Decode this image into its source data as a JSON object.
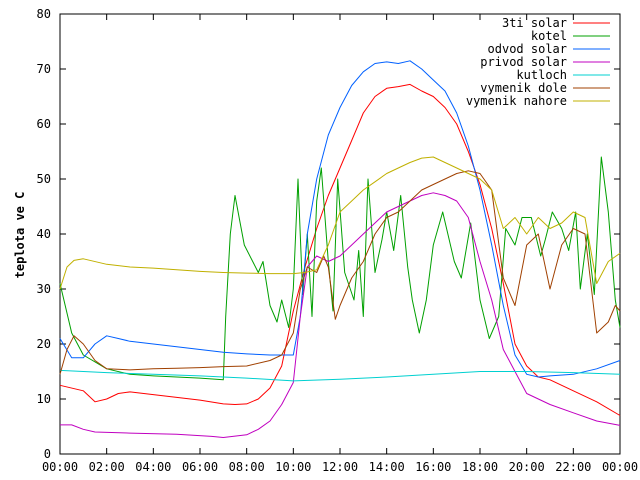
{
  "chart_data": {
    "type": "line",
    "title": "",
    "xlabel": "",
    "ylabel": "teplota ve C",
    "xlim": [
      0,
      24
    ],
    "ylim": [
      0,
      80
    ],
    "grid": false,
    "legend": "top-right",
    "x_ticks": [
      "00:00",
      "02:00",
      "04:00",
      "06:00",
      "08:00",
      "10:00",
      "12:00",
      "14:00",
      "16:00",
      "18:00",
      "20:00",
      "22:00",
      "00:00"
    ],
    "y_ticks": [
      0,
      10,
      20,
      30,
      40,
      50,
      60,
      70,
      80
    ],
    "series": [
      {
        "name": "3ti solar",
        "color": "#ff0000",
        "points": [
          [
            0,
            12.5
          ],
          [
            1,
            11.5
          ],
          [
            1.5,
            9.5
          ],
          [
            2,
            10
          ],
          [
            2.5,
            11
          ],
          [
            3,
            11.3
          ],
          [
            4,
            10.8
          ],
          [
            5,
            10.3
          ],
          [
            6,
            9.8
          ],
          [
            7,
            9.1
          ],
          [
            7.5,
            9
          ],
          [
            8,
            9.1
          ],
          [
            8.5,
            10
          ],
          [
            9,
            12
          ],
          [
            9.5,
            16
          ],
          [
            10,
            26
          ],
          [
            10.5,
            34
          ],
          [
            11,
            41
          ],
          [
            11.5,
            47
          ],
          [
            12,
            52
          ],
          [
            12.5,
            57
          ],
          [
            13,
            62
          ],
          [
            13.5,
            65
          ],
          [
            14,
            66.5
          ],
          [
            14.5,
            66.8
          ],
          [
            15,
            67.2
          ],
          [
            15.5,
            66
          ],
          [
            16,
            65
          ],
          [
            16.5,
            63
          ],
          [
            17,
            60
          ],
          [
            17.5,
            55
          ],
          [
            18,
            49
          ],
          [
            18.5,
            41
          ],
          [
            19,
            31
          ],
          [
            19.5,
            20
          ],
          [
            20,
            16
          ],
          [
            20.5,
            14
          ],
          [
            21,
            13.5
          ],
          [
            22,
            11.5
          ],
          [
            23,
            9.5
          ],
          [
            24,
            7
          ]
        ]
      },
      {
        "name": "kotel",
        "color": "#00a000",
        "points": [
          [
            0,
            31
          ],
          [
            0.5,
            22
          ],
          [
            1,
            18
          ],
          [
            2,
            15.5
          ],
          [
            3,
            14.5
          ],
          [
            4,
            14.2
          ],
          [
            5,
            14
          ],
          [
            6,
            13.8
          ],
          [
            7,
            13.5
          ],
          [
            7.1,
            25
          ],
          [
            7.3,
            40
          ],
          [
            7.5,
            47
          ],
          [
            7.9,
            38
          ],
          [
            8.5,
            33
          ],
          [
            8.7,
            35
          ],
          [
            9,
            27
          ],
          [
            9.3,
            24
          ],
          [
            9.5,
            28
          ],
          [
            9.8,
            23
          ],
          [
            10,
            30
          ],
          [
            10.2,
            50
          ],
          [
            10.4,
            29
          ],
          [
            10.6,
            40
          ],
          [
            10.8,
            25
          ],
          [
            11,
            46
          ],
          [
            11.2,
            52
          ],
          [
            11.5,
            35
          ],
          [
            11.7,
            26
          ],
          [
            11.9,
            50
          ],
          [
            12.2,
            33
          ],
          [
            12.6,
            28
          ],
          [
            12.8,
            37
          ],
          [
            13,
            25
          ],
          [
            13.2,
            50
          ],
          [
            13.5,
            33
          ],
          [
            13.8,
            39
          ],
          [
            14,
            44
          ],
          [
            14.3,
            37
          ],
          [
            14.6,
            47
          ],
          [
            14.9,
            34
          ],
          [
            15.1,
            28
          ],
          [
            15.4,
            22
          ],
          [
            15.7,
            28
          ],
          [
            16,
            38
          ],
          [
            16.4,
            44
          ],
          [
            16.9,
            35
          ],
          [
            17.2,
            32
          ],
          [
            17.6,
            42
          ],
          [
            18,
            28
          ],
          [
            18.4,
            21
          ],
          [
            18.8,
            25
          ],
          [
            19.1,
            41
          ],
          [
            19.5,
            38
          ],
          [
            19.8,
            43
          ],
          [
            20.2,
            43
          ],
          [
            20.6,
            36
          ],
          [
            20.8,
            39
          ],
          [
            21.1,
            44
          ],
          [
            21.5,
            41
          ],
          [
            21.8,
            37
          ],
          [
            22.1,
            44
          ],
          [
            22.3,
            30
          ],
          [
            22.6,
            40
          ],
          [
            22.9,
            29
          ],
          [
            23.2,
            54
          ],
          [
            23.5,
            44
          ],
          [
            23.8,
            28
          ],
          [
            24,
            23
          ]
        ]
      },
      {
        "name": "odvod solar",
        "color": "#0060ff",
        "points": [
          [
            0,
            21
          ],
          [
            0.5,
            17.5
          ],
          [
            1,
            17.5
          ],
          [
            1.5,
            20
          ],
          [
            2,
            21.5
          ],
          [
            2.5,
            21
          ],
          [
            3,
            20.5
          ],
          [
            4,
            20
          ],
          [
            5,
            19.5
          ],
          [
            6,
            19
          ],
          [
            7,
            18.5
          ],
          [
            8,
            18.2
          ],
          [
            9,
            18
          ],
          [
            10,
            18
          ],
          [
            10.3,
            25
          ],
          [
            10.6,
            40
          ],
          [
            11,
            50
          ],
          [
            11.5,
            58
          ],
          [
            12,
            63
          ],
          [
            12.5,
            67
          ],
          [
            13,
            69.5
          ],
          [
            13.5,
            71
          ],
          [
            14,
            71.3
          ],
          [
            14.5,
            71
          ],
          [
            15,
            71.5
          ],
          [
            15.5,
            70
          ],
          [
            16,
            68
          ],
          [
            16.5,
            66
          ],
          [
            17,
            62
          ],
          [
            17.5,
            56
          ],
          [
            18,
            48
          ],
          [
            18.5,
            38
          ],
          [
            19,
            27
          ],
          [
            19.5,
            18
          ],
          [
            20,
            14.5
          ],
          [
            20.5,
            14
          ],
          [
            21,
            14.2
          ],
          [
            22,
            14.5
          ],
          [
            23,
            15.5
          ],
          [
            24,
            17
          ]
        ]
      },
      {
        "name": "privod solar",
        "color": "#c000c0",
        "points": [
          [
            0,
            5.3
          ],
          [
            0.5,
            5.3
          ],
          [
            1,
            4.5
          ],
          [
            1.5,
            4
          ],
          [
            3,
            3.8
          ],
          [
            5,
            3.6
          ],
          [
            6.5,
            3.2
          ],
          [
            7,
            3
          ],
          [
            8,
            3.5
          ],
          [
            8.5,
            4.5
          ],
          [
            9,
            6
          ],
          [
            9.5,
            9
          ],
          [
            10,
            13
          ],
          [
            10.3,
            25
          ],
          [
            10.6,
            34
          ],
          [
            11,
            36
          ],
          [
            11.5,
            35
          ],
          [
            12,
            36
          ],
          [
            12.5,
            38
          ],
          [
            13,
            40
          ],
          [
            13.5,
            42
          ],
          [
            14,
            44
          ],
          [
            14.5,
            45
          ],
          [
            15,
            46
          ],
          [
            15.5,
            47
          ],
          [
            16,
            47.5
          ],
          [
            16.5,
            47
          ],
          [
            17,
            46
          ],
          [
            17.5,
            43
          ],
          [
            18,
            35
          ],
          [
            18.5,
            28
          ],
          [
            19,
            19
          ],
          [
            19.5,
            15
          ],
          [
            20,
            11
          ],
          [
            21,
            9
          ],
          [
            22,
            7.5
          ],
          [
            23,
            6
          ],
          [
            24,
            5.2
          ]
        ]
      },
      {
        "name": "kutloch",
        "color": "#00d0d0",
        "points": [
          [
            0,
            15.2
          ],
          [
            2,
            14.8
          ],
          [
            4,
            14.5
          ],
          [
            6,
            14.2
          ],
          [
            8,
            13.8
          ],
          [
            10,
            13.3
          ],
          [
            12,
            13.6
          ],
          [
            14,
            14
          ],
          [
            16,
            14.5
          ],
          [
            18,
            15
          ],
          [
            20,
            15
          ],
          [
            22,
            14.8
          ],
          [
            24,
            14.5
          ]
        ]
      },
      {
        "name": "vymenik dole",
        "color": "#a04000",
        "points": [
          [
            0,
            14.5
          ],
          [
            0.3,
            19
          ],
          [
            0.6,
            21.5
          ],
          [
            1,
            20
          ],
          [
            1.5,
            17
          ],
          [
            2,
            15.5
          ],
          [
            3,
            15.3
          ],
          [
            4,
            15.5
          ],
          [
            5,
            15.6
          ],
          [
            6,
            15.7
          ],
          [
            7,
            15.9
          ],
          [
            8,
            16
          ],
          [
            9,
            17
          ],
          [
            9.5,
            18
          ],
          [
            10,
            22
          ],
          [
            10.3,
            30
          ],
          [
            10.6,
            34
          ],
          [
            11,
            33
          ],
          [
            11.3,
            36
          ],
          [
            11.5,
            34
          ],
          [
            11.8,
            24.5
          ],
          [
            12,
            27
          ],
          [
            12.5,
            32
          ],
          [
            13,
            35
          ],
          [
            13.5,
            40
          ],
          [
            14,
            43
          ],
          [
            14.5,
            44
          ],
          [
            15,
            46
          ],
          [
            15.5,
            48
          ],
          [
            16,
            49
          ],
          [
            16.5,
            50
          ],
          [
            17,
            51
          ],
          [
            17.5,
            51.5
          ],
          [
            18,
            51
          ],
          [
            18.5,
            48
          ],
          [
            19,
            32
          ],
          [
            19.5,
            27
          ],
          [
            20,
            38
          ],
          [
            20.5,
            40
          ],
          [
            21,
            30
          ],
          [
            21.5,
            38
          ],
          [
            22,
            41
          ],
          [
            22.5,
            40
          ],
          [
            23,
            22
          ],
          [
            23.5,
            24
          ],
          [
            23.8,
            27
          ],
          [
            24,
            26
          ]
        ]
      },
      {
        "name": "vymenik nahore",
        "color": "#c0b000",
        "points": [
          [
            0,
            30
          ],
          [
            0.3,
            34
          ],
          [
            0.6,
            35.2
          ],
          [
            1,
            35.5
          ],
          [
            2,
            34.5
          ],
          [
            3,
            34
          ],
          [
            4,
            33.8
          ],
          [
            5,
            33.5
          ],
          [
            6,
            33.2
          ],
          [
            7,
            33
          ],
          [
            8,
            32.9
          ],
          [
            9,
            32.8
          ],
          [
            10,
            32.8
          ],
          [
            10.5,
            33
          ],
          [
            11,
            33.5
          ],
          [
            11.5,
            38
          ],
          [
            12,
            44
          ],
          [
            12.5,
            46
          ],
          [
            13,
            48
          ],
          [
            13.5,
            49.5
          ],
          [
            14,
            51
          ],
          [
            14.5,
            52
          ],
          [
            15,
            53
          ],
          [
            15.5,
            53.8
          ],
          [
            16,
            54
          ],
          [
            16.5,
            53
          ],
          [
            17,
            52
          ],
          [
            17.5,
            51
          ],
          [
            18,
            50
          ],
          [
            18.5,
            48
          ],
          [
            19,
            41
          ],
          [
            19.5,
            43
          ],
          [
            20,
            40
          ],
          [
            20.5,
            43
          ],
          [
            21,
            41
          ],
          [
            21.5,
            42
          ],
          [
            22,
            44
          ],
          [
            22.5,
            43
          ],
          [
            23,
            31
          ],
          [
            23.5,
            35
          ],
          [
            24,
            36.5
          ]
        ]
      }
    ]
  }
}
